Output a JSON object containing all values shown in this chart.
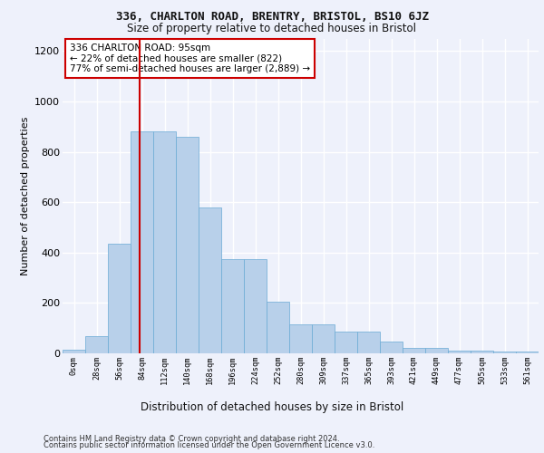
{
  "title1": "336, CHARLTON ROAD, BRENTRY, BRISTOL, BS10 6JZ",
  "title2": "Size of property relative to detached houses in Bristol",
  "xlabel": "Distribution of detached houses by size in Bristol",
  "ylabel": "Number of detached properties",
  "bin_labels": [
    "0sqm",
    "28sqm",
    "56sqm",
    "84sqm",
    "112sqm",
    "140sqm",
    "168sqm",
    "196sqm",
    "224sqm",
    "252sqm",
    "280sqm",
    "309sqm",
    "337sqm",
    "365sqm",
    "393sqm",
    "421sqm",
    "449sqm",
    "477sqm",
    "505sqm",
    "533sqm",
    "561sqm"
  ],
  "bar_values": [
    13,
    67,
    437,
    880,
    880,
    860,
    578,
    375,
    375,
    205,
    115,
    115,
    85,
    85,
    45,
    22,
    22,
    12,
    12,
    8,
    8
  ],
  "bar_color": "#b8d0ea",
  "bar_edge_color": "#6aaad4",
  "property_line_color": "#cc0000",
  "annotation_text": "336 CHARLTON ROAD: 95sqm\n← 22% of detached houses are smaller (822)\n77% of semi-detached houses are larger (2,889) →",
  "annotation_box_color": "#ffffff",
  "annotation_box_edge": "#cc0000",
  "ylim": [
    0,
    1250
  ],
  "yticks": [
    0,
    200,
    400,
    600,
    800,
    1000,
    1200
  ],
  "footer_line1": "Contains HM Land Registry data © Crown copyright and database right 2024.",
  "footer_line2": "Contains public sector information licensed under the Open Government Licence v3.0.",
  "bg_color": "#eef1fb",
  "plot_bg_color": "#eef1fb",
  "grid_color": "#ffffff"
}
